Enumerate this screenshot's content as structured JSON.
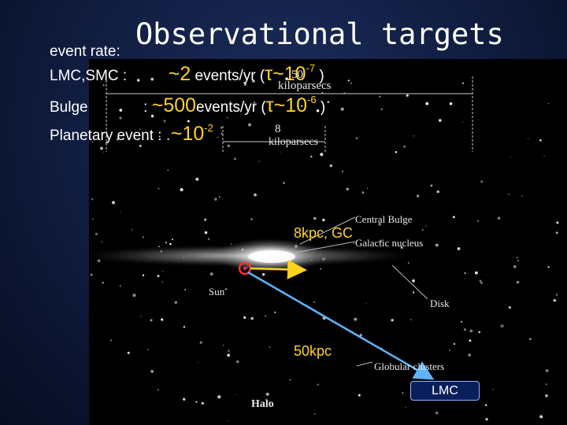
{
  "header": {
    "title": "Observational targets",
    "event_rate_label": "event rate:"
  },
  "rates": {
    "lmc": {
      "label": "LMC,SMC  :",
      "rate": "~2",
      "unit": " events/yr (",
      "tau": "τ~10",
      "exp": "-7",
      "close": " )"
    },
    "bulge": {
      "label": "Bulge",
      "sep": ":",
      "rate": "~500",
      "unit": "events/yr (",
      "tau": "τ~10",
      "exp": "-6",
      "close": " )"
    },
    "planetary": {
      "label": "Planetary event :",
      "rate": "~10",
      "exp": "-2"
    }
  },
  "figure": {
    "kiloparsecs_top": "kiloparsecs",
    "num_8": "8",
    "kiloparsecs_mid": "kiloparsecs",
    "num_50": "50",
    "central_bulge": "Central Bulge",
    "galactic_nucleus": "Galactic nucleus",
    "sun": "Sun",
    "disk": "Disk",
    "globular_clusters": "Globular clusters",
    "halo": "Halo"
  },
  "annotations": {
    "gc_distance": "8kpc, GC",
    "lmc_distance": "50kpc",
    "lmc_label": "LMC"
  },
  "colors": {
    "highlight": "#ffd21e",
    "arrow": "#5fb4ff",
    "sun_marker": "#ff3030"
  }
}
